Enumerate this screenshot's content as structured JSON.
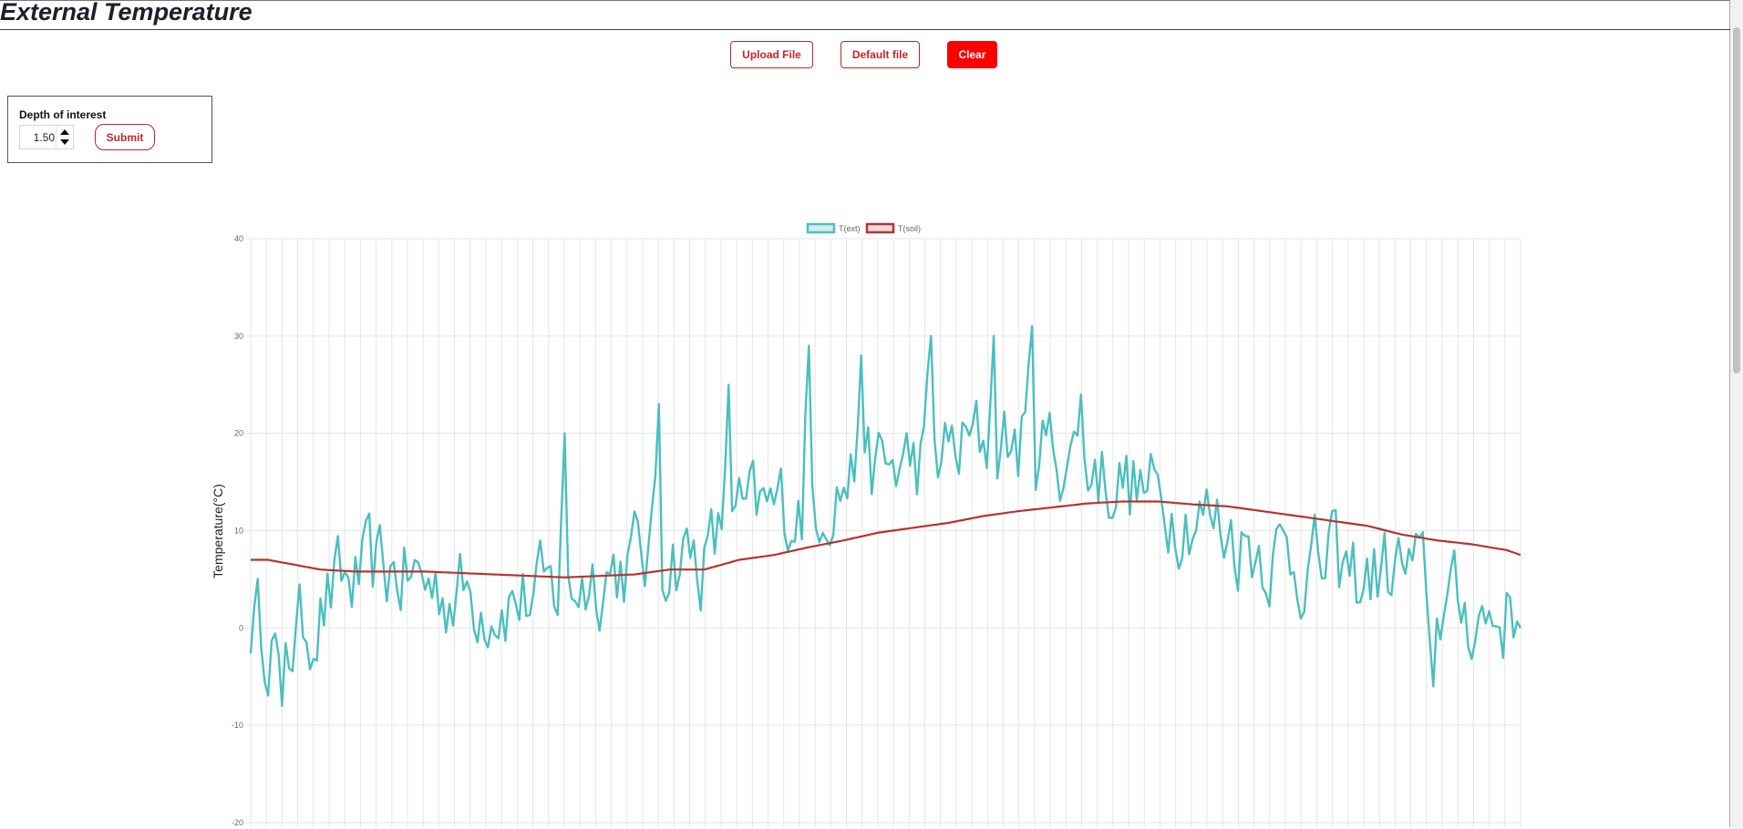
{
  "page": {
    "title": "External Temperature"
  },
  "toolbar": {
    "upload_label": "Upload File",
    "default_label": "Default file",
    "clear_label": "Clear"
  },
  "depth_form": {
    "label": "Depth of interest",
    "value": "1.50",
    "submit_label": "Submit"
  },
  "colors": {
    "ext": "#4bbfbf",
    "soil": "#b83232",
    "accent": "#c0262b",
    "clear": "#ff0000"
  },
  "chart_data": {
    "type": "line",
    "ylabel": "Temperature(°C)",
    "ylim": [
      -20,
      40
    ],
    "yticks": [
      40,
      30,
      20,
      10,
      0,
      -10,
      -20
    ],
    "legend": {
      "position": "top",
      "entries": [
        "T(ext)",
        "T(soil)"
      ]
    },
    "grid": true,
    "x_count": 365,
    "series": [
      {
        "name": "T(ext)",
        "mean_anchors": [
          [
            0,
            1
          ],
          [
            10,
            -2
          ],
          [
            25,
            4
          ],
          [
            40,
            6
          ],
          [
            55,
            4
          ],
          [
            70,
            3
          ],
          [
            85,
            3
          ],
          [
            95,
            5
          ],
          [
            110,
            7
          ],
          [
            120,
            8
          ],
          [
            130,
            7
          ],
          [
            140,
            11
          ],
          [
            150,
            12
          ],
          [
            160,
            13
          ],
          [
            170,
            15
          ],
          [
            180,
            16
          ],
          [
            190,
            17
          ],
          [
            200,
            18
          ],
          [
            210,
            19
          ],
          [
            225,
            19
          ],
          [
            240,
            17
          ],
          [
            255,
            14
          ],
          [
            270,
            12
          ],
          [
            285,
            9
          ],
          [
            300,
            7
          ],
          [
            315,
            5
          ],
          [
            330,
            6
          ],
          [
            345,
            2
          ],
          [
            355,
            1
          ],
          [
            364,
            2
          ]
        ],
        "amplitude": 6,
        "peaks": [
          [
            9,
            -8
          ],
          [
            90,
            20
          ],
          [
            117,
            23
          ],
          [
            137,
            25
          ],
          [
            160,
            29
          ],
          [
            175,
            28
          ],
          [
            195,
            30
          ],
          [
            213,
            30
          ],
          [
            224,
            31
          ],
          [
            238,
            24
          ],
          [
            310,
            12
          ],
          [
            339,
            -6
          ],
          [
            365,
            0
          ]
        ]
      },
      {
        "name": "T(soil)",
        "anchors": [
          [
            0,
            7
          ],
          [
            5,
            7
          ],
          [
            20,
            6
          ],
          [
            30,
            5.8
          ],
          [
            50,
            5.8
          ],
          [
            70,
            5.5
          ],
          [
            90,
            5.2
          ],
          [
            110,
            5.5
          ],
          [
            120,
            6
          ],
          [
            130,
            6
          ],
          [
            140,
            7
          ],
          [
            150,
            7.5
          ],
          [
            160,
            8.3
          ],
          [
            170,
            9
          ],
          [
            180,
            9.8
          ],
          [
            190,
            10.3
          ],
          [
            200,
            10.8
          ],
          [
            210,
            11.5
          ],
          [
            220,
            12
          ],
          [
            240,
            12.8
          ],
          [
            250,
            13
          ],
          [
            260,
            13
          ],
          [
            270,
            12.7
          ],
          [
            280,
            12.5
          ],
          [
            290,
            12
          ],
          [
            300,
            11.5
          ],
          [
            310,
            11
          ],
          [
            320,
            10.5
          ],
          [
            330,
            9.6
          ],
          [
            340,
            9
          ],
          [
            350,
            8.6
          ],
          [
            360,
            8
          ],
          [
            364,
            7.5
          ]
        ]
      }
    ]
  }
}
